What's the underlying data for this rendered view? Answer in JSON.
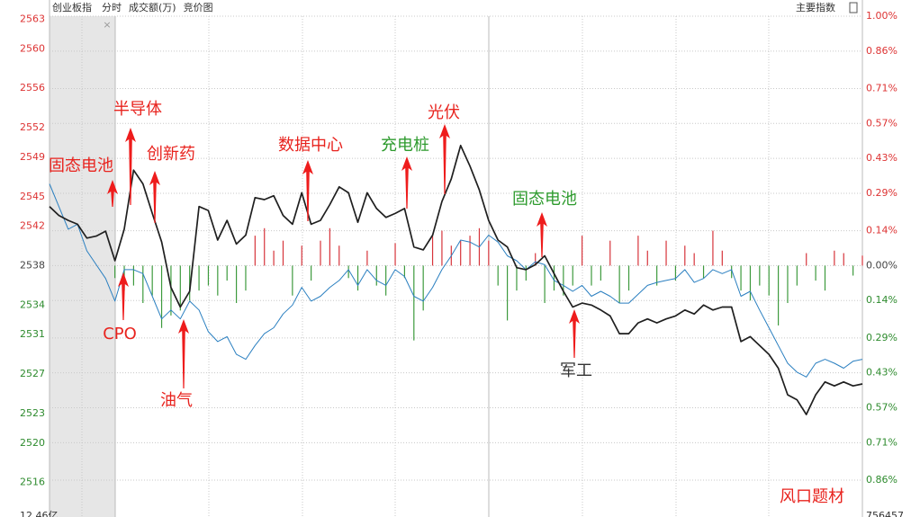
{
  "chart_data": {
    "type": "line",
    "title": "创业板指",
    "header_items": [
      "分时",
      "成交额(万)",
      "竞价图"
    ],
    "right_label": "主要指数",
    "bottom_left": "12.46亿",
    "bottom_right": "756457",
    "xlim": [
      -21,
      240
    ],
    "ylim": [
      2512.5,
      2564.5
    ],
    "yticks": [
      2563,
      2560,
      2556,
      2552,
      2549,
      2545,
      2542,
      2538,
      2534,
      2531,
      2527,
      2523,
      2520,
      2516
    ],
    "y2lim": [
      -1.008,
      1.047
    ],
    "y2ticks": [
      {
        "value": 1.0,
        "label": "1.00%"
      },
      {
        "value": 0.86,
        "label": "0.86%"
      },
      {
        "value": 0.71,
        "label": "0.71%"
      },
      {
        "value": 0.57,
        "label": "0.57%"
      },
      {
        "value": 0.43,
        "label": "0.43%"
      },
      {
        "value": 0.29,
        "label": "0.29%"
      },
      {
        "value": 0.14,
        "label": "0.14%"
      },
      {
        "value": 0,
        "label": "0.00%"
      },
      {
        "value": -0.14,
        "label": "0.14%"
      },
      {
        "value": -0.29,
        "label": "0.29%"
      },
      {
        "value": -0.43,
        "label": "0.43%"
      },
      {
        "value": -0.57,
        "label": "0.57%"
      },
      {
        "value": -0.71,
        "label": "0.71%"
      },
      {
        "value": -0.86,
        "label": "0.86%"
      }
    ],
    "grid": true,
    "x": [
      -21,
      -18,
      -15,
      -12,
      -9,
      -6,
      -3,
      0,
      3,
      6,
      9,
      12,
      15,
      18,
      21,
      24,
      27,
      30,
      33,
      36,
      39,
      42,
      45,
      48,
      51,
      54,
      57,
      60,
      63,
      66,
      69,
      72,
      75,
      78,
      81,
      84,
      87,
      90,
      93,
      96,
      99,
      102,
      105,
      108,
      111,
      114,
      117,
      120,
      123,
      126,
      129,
      132,
      135,
      138,
      141,
      144,
      147,
      150,
      153,
      156,
      159,
      162,
      165,
      168,
      171,
      174,
      177,
      180,
      183,
      186,
      189,
      192,
      195,
      198,
      201,
      204,
      207,
      210,
      213,
      216,
      219,
      222,
      225,
      228,
      231,
      234,
      237,
      240
    ],
    "series": [
      {
        "color": "#1f1f1f",
        "values": [
          2544.0,
          2543.1,
          2542.6,
          2542.2,
          2540.8,
          2541.0,
          2541.5,
          2538.5,
          2541.7,
          2547.7,
          2546.3,
          2543.3,
          2540.4,
          2535.8,
          2533.8,
          2535.4,
          2544.0,
          2543.6,
          2540.6,
          2542.6,
          2540.2,
          2541.1,
          2544.9,
          2544.7,
          2545.1,
          2543.1,
          2542.2,
          2545.4,
          2542.2,
          2542.6,
          2544.2,
          2546.0,
          2545.4,
          2542.4,
          2545.4,
          2543.8,
          2542.9,
          2543.3,
          2543.8,
          2539.9,
          2539.6,
          2541.1,
          2544.5,
          2546.8,
          2550.2,
          2548.1,
          2545.7,
          2542.6,
          2540.6,
          2539.9,
          2537.8,
          2537.6,
          2538.1,
          2539.0,
          2537.2,
          2535.4,
          2533.8,
          2534.2,
          2534.0,
          2533.5,
          2532.9,
          2531.1,
          2531.1,
          2532.2,
          2532.6,
          2532.2,
          2532.6,
          2532.9,
          2533.5,
          2533.1,
          2534.0,
          2533.5,
          2533.8,
          2533.8,
          2530.3,
          2530.8,
          2529.9,
          2529.0,
          2527.6,
          2524.9,
          2524.4,
          2522.9,
          2524.9,
          2526.2,
          2525.8,
          2526.2,
          2525.8,
          2526.0
        ]
      },
      {
        "color": "#2a7fc0",
        "values": [
          2546.3,
          2544.0,
          2541.7,
          2542.2,
          2539.5,
          2538.1,
          2536.7,
          2534.4,
          2537.6,
          2537.6,
          2537.2,
          2534.9,
          2532.6,
          2533.5,
          2532.6,
          2534.4,
          2533.5,
          2531.3,
          2530.3,
          2530.8,
          2529.0,
          2528.5,
          2529.9,
          2531.1,
          2531.7,
          2533.1,
          2534.0,
          2535.8,
          2534.4,
          2534.9,
          2535.8,
          2536.5,
          2537.6,
          2536.0,
          2537.6,
          2536.5,
          2536.0,
          2537.6,
          2536.9,
          2534.9,
          2534.4,
          2535.8,
          2537.6,
          2539.0,
          2540.6,
          2540.4,
          2539.9,
          2541.1,
          2540.4,
          2539.0,
          2538.5,
          2537.6,
          2538.4,
          2538.1,
          2536.5,
          2536.0,
          2535.4,
          2536.0,
          2534.9,
          2535.4,
          2534.9,
          2534.2,
          2534.2,
          2535.1,
          2536.0,
          2536.3,
          2536.5,
          2536.7,
          2537.6,
          2536.3,
          2536.7,
          2537.6,
          2537.2,
          2537.6,
          2534.9,
          2535.4,
          2533.5,
          2531.7,
          2529.9,
          2528.1,
          2527.2,
          2526.7,
          2528.1,
          2528.5,
          2528.1,
          2527.6,
          2528.3,
          2528.5
        ]
      }
    ],
    "bars": {
      "axis": "y2",
      "up_color": "#d7343b",
      "down_color": "#3d9a3d",
      "x": [
        0,
        3,
        6,
        9,
        12,
        15,
        18,
        21,
        24,
        27,
        30,
        33,
        36,
        39,
        42,
        45,
        48,
        51,
        54,
        57,
        60,
        63,
        66,
        69,
        72,
        75,
        78,
        81,
        84,
        87,
        90,
        93,
        96,
        99,
        102,
        105,
        108,
        111,
        114,
        117,
        120,
        123,
        126,
        129,
        132,
        135,
        138,
        141,
        144,
        147,
        150,
        153,
        156,
        159,
        162,
        165,
        168,
        171,
        174,
        177,
        180,
        183,
        186,
        189,
        192,
        195,
        198,
        201,
        204,
        207,
        210,
        213,
        216,
        219,
        222,
        225,
        228,
        231,
        234,
        237,
        240
      ],
      "values": [
        -0.05,
        -0.1,
        -0.08,
        -0.15,
        -0.12,
        -0.25,
        -0.2,
        -0.18,
        -0.14,
        -0.1,
        -0.08,
        -0.12,
        -0.06,
        -0.15,
        -0.1,
        0.12,
        0.15,
        0.06,
        0.1,
        -0.12,
        0.08,
        -0.06,
        0.1,
        0.15,
        0.08,
        -0.05,
        -0.1,
        0.06,
        -0.08,
        -0.12,
        0.09,
        -0.05,
        -0.3,
        -0.18,
        0.12,
        0.14,
        0.08,
        0.1,
        0.12,
        0.15,
        0.1,
        -0.08,
        -0.22,
        -0.1,
        -0.06,
        0.05,
        -0.15,
        -0.1,
        -0.12,
        -0.08,
        0.12,
        -0.08,
        -0.06,
        0.1,
        -0.15,
        -0.1,
        0.12,
        0.06,
        -0.08,
        0.1,
        -0.06,
        0.08,
        0.05,
        -0.05,
        0.14,
        0.06,
        -0.05,
        -0.1,
        -0.14,
        -0.08,
        -0.12,
        -0.24,
        -0.15,
        -0.08,
        0.05,
        -0.06,
        -0.1,
        0.06,
        0.05,
        -0.04,
        0.04
      ]
    },
    "annotations": [
      {
        "text": "固态电池",
        "color": "#e8231e"
      },
      {
        "text": "半导体",
        "color": "#e8231e"
      },
      {
        "text": "创新药",
        "color": "#e8231e"
      },
      {
        "text": "数据中心",
        "color": "#e8231e"
      },
      {
        "text": "充电桩",
        "color": "#2e9b2e"
      },
      {
        "text": "光伏",
        "color": "#e8231e"
      },
      {
        "text": "固态电池",
        "color": "#2e9b2e"
      },
      {
        "text": "CPO",
        "color": "#e8231e"
      },
      {
        "text": "油气",
        "color": "#e8231e"
      },
      {
        "text": "军工",
        "color": "#333333"
      },
      {
        "text": "风口题材",
        "color": "#e8231e"
      }
    ]
  }
}
